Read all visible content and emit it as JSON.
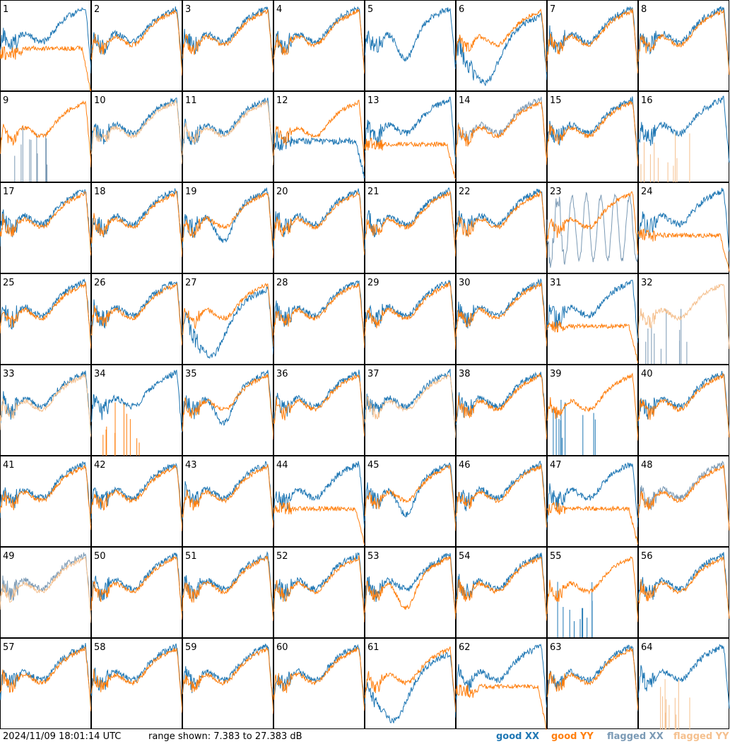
{
  "chart_data": {
    "type": "line",
    "panel_labels": [
      "1",
      "2",
      "3",
      "4",
      "5",
      "6",
      "7",
      "8",
      "9",
      "10",
      "11",
      "12",
      "13",
      "14",
      "15",
      "16",
      "17",
      "18",
      "19",
      "20",
      "21",
      "22",
      "23",
      "24",
      "25",
      "26",
      "27",
      "28",
      "29",
      "30",
      "31",
      "32",
      "33",
      "34",
      "35",
      "36",
      "37",
      "38",
      "39",
      "40",
      "41",
      "42",
      "43",
      "44",
      "45",
      "46",
      "47",
      "48",
      "49",
      "50",
      "51",
      "52",
      "53",
      "54",
      "55",
      "56",
      "57",
      "58",
      "59",
      "60",
      "61",
      "62",
      "63",
      "64"
    ],
    "ylim": [
      7.383,
      27.383
    ],
    "panels": [
      {
        "label": "1",
        "xx": "good",
        "yy": "good",
        "yy_shape": "lowtail"
      },
      {
        "label": "2",
        "xx": "good",
        "yy": "good"
      },
      {
        "label": "3",
        "xx": "good",
        "yy": "good"
      },
      {
        "label": "4",
        "xx": "good",
        "yy": "good"
      },
      {
        "label": "5",
        "xx": "good",
        "yy": "flagged",
        "xx_shape": "dip",
        "yy_shape": "flat"
      },
      {
        "label": "6",
        "xx": "good",
        "yy": "good",
        "xx_shape": "deepdip"
      },
      {
        "label": "7",
        "xx": "good",
        "yy": "good"
      },
      {
        "label": "8",
        "xx": "good",
        "yy": "good"
      },
      {
        "label": "9",
        "xx": "flagged",
        "yy": "good",
        "xx_shape": "spikes"
      },
      {
        "label": "10",
        "xx": "good",
        "yy": "flagged"
      },
      {
        "label": "11",
        "xx": "good",
        "yy": "flagged"
      },
      {
        "label": "12",
        "xx": "good",
        "yy": "good",
        "xx_shape": "sag"
      },
      {
        "label": "13",
        "xx": "good",
        "yy": "good",
        "yy_shape": "sag"
      },
      {
        "label": "14",
        "xx": "flagged",
        "yy": "good"
      },
      {
        "label": "15",
        "xx": "good",
        "yy": "good"
      },
      {
        "label": "16",
        "xx": "good",
        "yy": "flagged",
        "yy_shape": "spikes"
      },
      {
        "label": "17",
        "xx": "good",
        "yy": "good"
      },
      {
        "label": "18",
        "xx": "good",
        "yy": "good"
      },
      {
        "label": "19",
        "xx": "good",
        "yy": "good",
        "xx_shape": "dip"
      },
      {
        "label": "20",
        "xx": "good",
        "yy": "good"
      },
      {
        "label": "21",
        "xx": "good",
        "yy": "good"
      },
      {
        "label": "22",
        "xx": "good",
        "yy": "good"
      },
      {
        "label": "23",
        "xx": "flagged",
        "yy": "good",
        "xx_shape": "noise"
      },
      {
        "label": "24",
        "xx": "good",
        "yy": "good",
        "yy_shape": "sag"
      },
      {
        "label": "25",
        "xx": "good",
        "yy": "good"
      },
      {
        "label": "26",
        "xx": "good",
        "yy": "good"
      },
      {
        "label": "27",
        "xx": "good",
        "yy": "good",
        "xx_shape": "deepdip"
      },
      {
        "label": "28",
        "xx": "good",
        "yy": "good"
      },
      {
        "label": "29",
        "xx": "good",
        "yy": "good"
      },
      {
        "label": "30",
        "xx": "good",
        "yy": "good"
      },
      {
        "label": "31",
        "xx": "good",
        "yy": "good",
        "yy_shape": "sag"
      },
      {
        "label": "32",
        "xx": "flagged",
        "yy": "flagged",
        "xx_shape": "spikes"
      },
      {
        "label": "33",
        "xx": "good",
        "yy": "flagged"
      },
      {
        "label": "34",
        "xx": "good",
        "yy": "good",
        "yy_shape": "spikes"
      },
      {
        "label": "35",
        "xx": "good",
        "yy": "good",
        "xx_shape": "dip"
      },
      {
        "label": "36",
        "xx": "good",
        "yy": "good"
      },
      {
        "label": "37",
        "xx": "good",
        "yy": "flagged"
      },
      {
        "label": "38",
        "xx": "good",
        "yy": "good"
      },
      {
        "label": "39",
        "xx": "good",
        "yy": "good",
        "xx_shape": "spikes"
      },
      {
        "label": "40",
        "xx": "good",
        "yy": "good"
      },
      {
        "label": "41",
        "xx": "good",
        "yy": "good"
      },
      {
        "label": "42",
        "xx": "good",
        "yy": "good"
      },
      {
        "label": "43",
        "xx": "good",
        "yy": "good"
      },
      {
        "label": "44",
        "xx": "good",
        "yy": "good",
        "yy_shape": "sag"
      },
      {
        "label": "45",
        "xx": "good",
        "yy": "good",
        "xx_shape": "dip"
      },
      {
        "label": "46",
        "xx": "good",
        "yy": "good"
      },
      {
        "label": "47",
        "xx": "good",
        "yy": "good",
        "yy_shape": "sag"
      },
      {
        "label": "48",
        "xx": "flagged",
        "yy": "good"
      },
      {
        "label": "49",
        "xx": "flagged",
        "yy": "flagged"
      },
      {
        "label": "50",
        "xx": "good",
        "yy": "good"
      },
      {
        "label": "51",
        "xx": "good",
        "yy": "good"
      },
      {
        "label": "52",
        "xx": "good",
        "yy": "good"
      },
      {
        "label": "53",
        "xx": "good",
        "yy": "good",
        "yy_shape": "dip"
      },
      {
        "label": "54",
        "xx": "good",
        "yy": "good"
      },
      {
        "label": "55",
        "xx": "good",
        "yy": "good",
        "xx_shape": "spikes"
      },
      {
        "label": "56",
        "xx": "good",
        "yy": "good"
      },
      {
        "label": "57",
        "xx": "good",
        "yy": "good"
      },
      {
        "label": "58",
        "xx": "good",
        "yy": "good"
      },
      {
        "label": "59",
        "xx": "good",
        "yy": "good"
      },
      {
        "label": "60",
        "xx": "good",
        "yy": "good"
      },
      {
        "label": "61",
        "xx": "good",
        "yy": "good",
        "xx_shape": "deepdip"
      },
      {
        "label": "62",
        "xx": "good",
        "yy": "good",
        "yy_shape": "lowtail"
      },
      {
        "label": "63",
        "xx": "good",
        "yy": "good"
      },
      {
        "label": "64",
        "xx": "good",
        "yy": "flagged",
        "yy_shape": "spikes"
      }
    ]
  },
  "footer": {
    "timestamp": "2024/11/09 18:01:14 UTC",
    "range": "range shown: 7.383 to 27.383 dB"
  },
  "legend": [
    {
      "label": "good XX",
      "color": "#1f77b4"
    },
    {
      "label": "good YY",
      "color": "#ff7f0e"
    },
    {
      "label": "flagged XX",
      "color": "#7b9ab5"
    },
    {
      "label": "flagged YY",
      "color": "#f5c08e"
    }
  ],
  "colors": {
    "good_xx": "#1f77b4",
    "good_yy": "#ff7f0e",
    "flagged_xx": "#7b9ab5",
    "flagged_yy": "#f5c08e"
  }
}
